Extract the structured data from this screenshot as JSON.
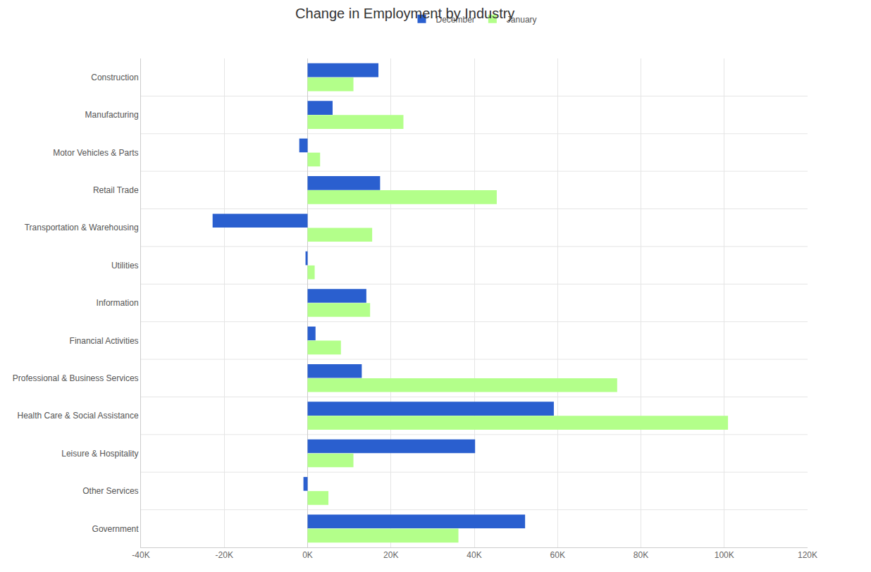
{
  "chart_data": {
    "type": "bar",
    "orientation": "horizontal",
    "title": "Change in Employment by Industry",
    "categories": [
      "Construction",
      "Manufacturing",
      "Motor Vehicles & Parts",
      "Retail Trade",
      "Transportation & Warehousing",
      "Utilities",
      "Information",
      "Financial Activities",
      "Professional & Business Services",
      "Health Care & Social Assistance",
      "Leisure & Hospitality",
      "Other Services",
      "Government"
    ],
    "series": [
      {
        "name": "December",
        "color": "#2a5fcf",
        "values": [
          17000,
          6000,
          -2000,
          17400,
          -22800,
          -500,
          14100,
          1900,
          13000,
          59100,
          40200,
          -1000,
          52200
        ]
      },
      {
        "name": "January",
        "color": "#b3ff8a",
        "values": [
          11000,
          23000,
          3000,
          45400,
          15500,
          1700,
          15000,
          8000,
          74300,
          100900,
          11000,
          5000,
          36200
        ]
      }
    ],
    "xlim": [
      -40000,
      120000
    ],
    "xticks": [
      {
        "value": -40000,
        "label": "-40K"
      },
      {
        "value": -20000,
        "label": "-20K"
      },
      {
        "value": 0,
        "label": "0K"
      },
      {
        "value": 20000,
        "label": "20K"
      },
      {
        "value": 40000,
        "label": "40K"
      },
      {
        "value": 60000,
        "label": "60K"
      },
      {
        "value": 80000,
        "label": "80K"
      },
      {
        "value": 100000,
        "label": "100K"
      },
      {
        "value": 120000,
        "label": "120K"
      }
    ],
    "grid": true,
    "legend": "top"
  }
}
